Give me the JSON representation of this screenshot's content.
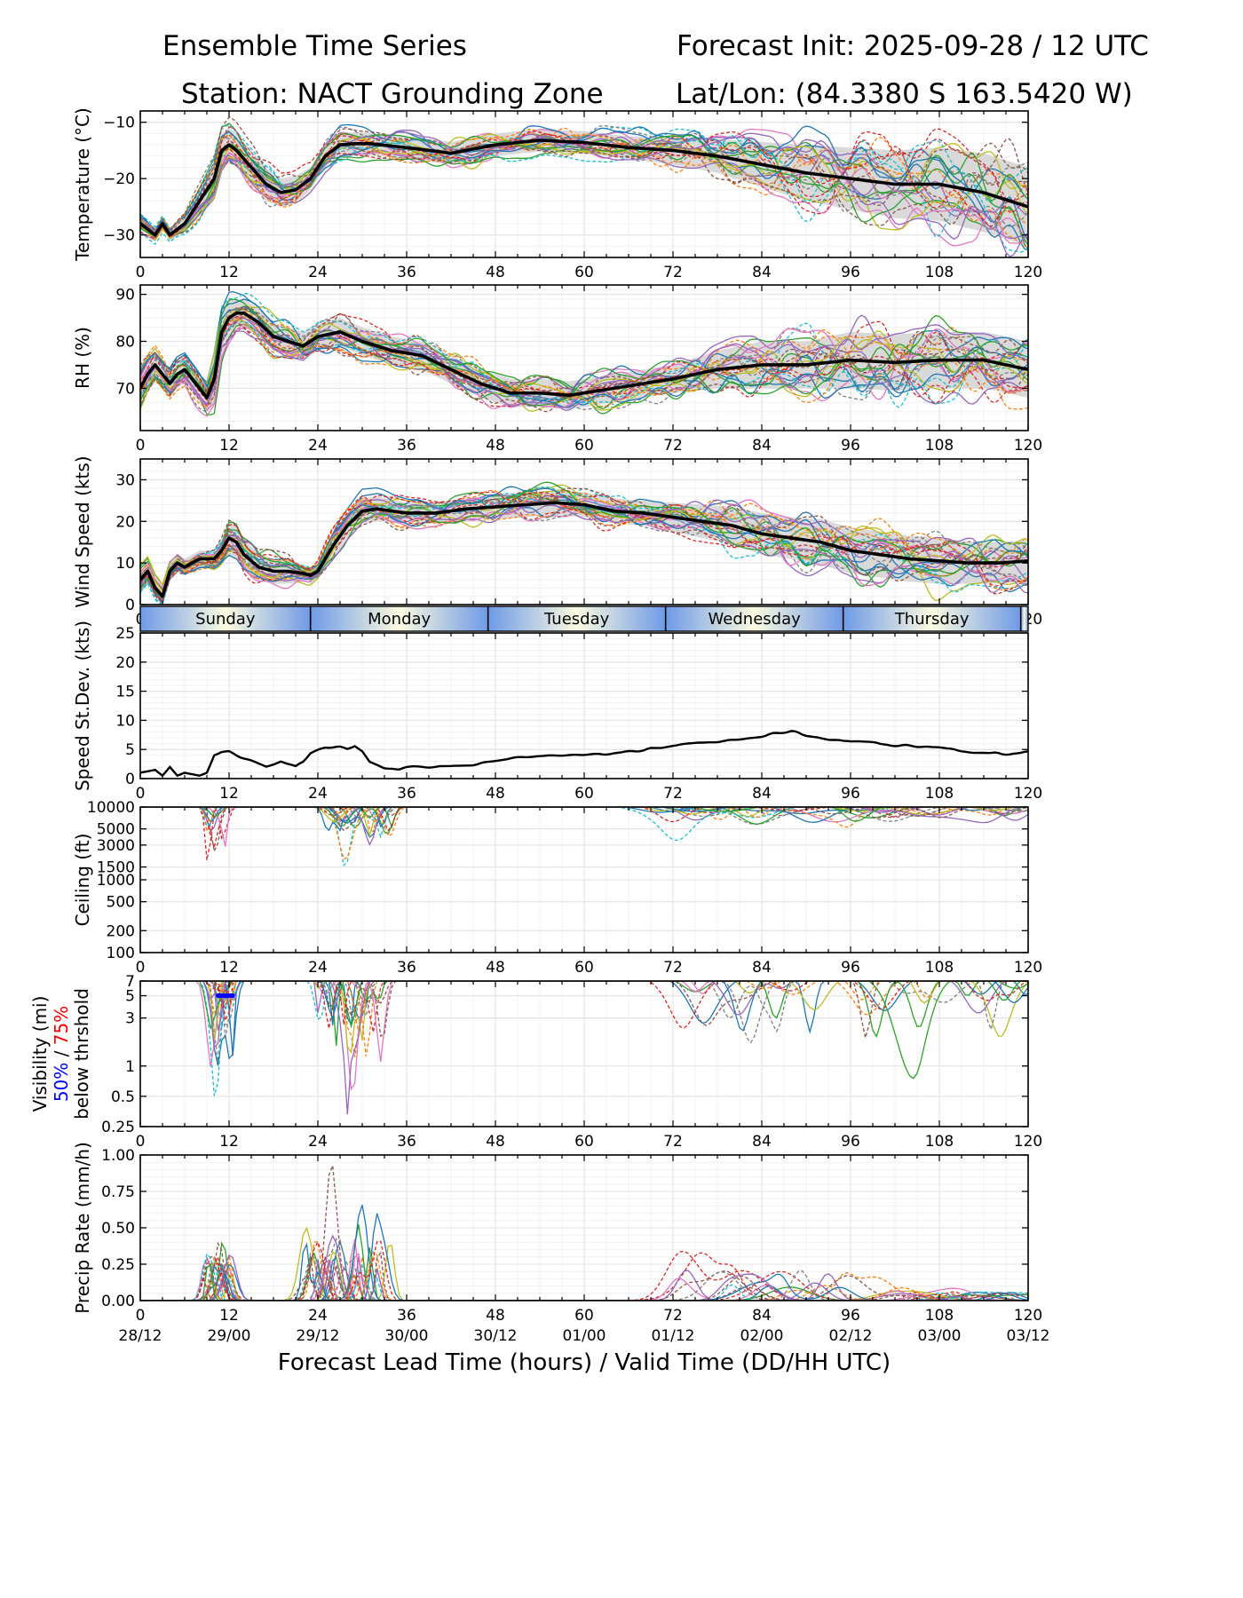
{
  "header": {
    "title_left": "Ensemble Time Series",
    "title_right": "Forecast Init: 2025-09-28 / 12 UTC",
    "station": "Station: NACT Grounding Zone",
    "latlon": "Lat/Lon: (84.3380 S 163.5420 W)"
  },
  "chart_data": [
    {
      "type": "line",
      "id": "temperature",
      "ylabel": "Temperature (°C)",
      "xlim": [
        0,
        120
      ],
      "ylim": [
        -34,
        -8
      ],
      "yticks": [
        -30,
        -20,
        -10
      ],
      "ytick_labels": [
        "−30",
        "−20",
        "−10"
      ],
      "x": [
        0,
        2,
        3,
        4,
        6,
        8,
        10,
        11,
        12,
        13,
        15,
        17,
        19,
        21,
        23,
        25,
        27,
        29,
        31,
        36,
        42,
        48,
        54,
        60,
        66,
        72,
        78,
        84,
        90,
        96,
        102,
        108,
        114,
        120
      ],
      "mean": [
        -28,
        -30,
        -28,
        -30,
        -28,
        -24,
        -20,
        -15,
        -14,
        -15,
        -18,
        -21,
        -22.5,
        -22,
        -20,
        -16,
        -14,
        -13.8,
        -13.8,
        -14.5,
        -15.5,
        -14,
        -13.2,
        -13.6,
        -14.5,
        -15,
        -16,
        -17.5,
        -19,
        -20,
        -21,
        -21,
        -22.5,
        -25
      ],
      "spread_half_width": [
        1,
        1,
        1,
        1,
        1.5,
        2,
        2.5,
        3,
        3,
        3,
        3,
        3,
        2.5,
        2.5,
        2,
        2,
        2,
        2,
        2,
        2,
        2,
        2,
        2,
        2,
        2,
        2.5,
        3,
        4,
        5,
        5.5,
        6,
        6.5,
        7,
        7
      ],
      "n_members": 26
    },
    {
      "type": "line",
      "id": "rh",
      "ylabel": "RH (%)",
      "xlim": [
        0,
        120
      ],
      "ylim": [
        61,
        92
      ],
      "yticks": [
        70,
        80,
        90
      ],
      "ytick_labels": [
        "70",
        "80",
        "90"
      ],
      "x": [
        0,
        1,
        2,
        3,
        4,
        5,
        6,
        7,
        8,
        9,
        10,
        11,
        12,
        13,
        14,
        16,
        18,
        20,
        22,
        24,
        27,
        30,
        34,
        38,
        42,
        46,
        50,
        54,
        58,
        62,
        66,
        72,
        78,
        84,
        90,
        96,
        102,
        108,
        114,
        120
      ],
      "mean": [
        70,
        73,
        75,
        73,
        71,
        73,
        74,
        72,
        70,
        68,
        72,
        82,
        85,
        86,
        86,
        84,
        81,
        80,
        79,
        81,
        82,
        80,
        78,
        77,
        74,
        71,
        69,
        69,
        68.5,
        69.5,
        70.5,
        72,
        74,
        75,
        75,
        76,
        75.5,
        76,
        76,
        74
      ],
      "spread_half_width": [
        3,
        3,
        3,
        3,
        3,
        3,
        3,
        3,
        3,
        3,
        5,
        5,
        4,
        3,
        3,
        3,
        3,
        3,
        3,
        3,
        3,
        3,
        3,
        3,
        3,
        3,
        3,
        3,
        3,
        3,
        3,
        3,
        4,
        5,
        5,
        6,
        6,
        6,
        6,
        6
      ],
      "n_members": 26
    },
    {
      "type": "line",
      "id": "wind",
      "ylabel": "Wind Speed (kts)",
      "xlim": [
        0,
        120
      ],
      "ylim": [
        0,
        35
      ],
      "yticks": [
        0,
        10,
        20,
        30
      ],
      "ytick_labels": [
        "0",
        "10",
        "20",
        "30"
      ],
      "x": [
        0,
        1,
        2,
        3,
        4,
        5,
        6,
        8,
        10,
        11,
        12,
        13,
        14,
        16,
        18,
        20,
        22,
        23,
        24,
        26,
        28,
        30,
        32,
        36,
        40,
        44,
        48,
        52,
        56,
        60,
        64,
        68,
        72,
        76,
        80,
        84,
        88,
        92,
        96,
        100,
        104,
        108,
        112,
        116,
        120
      ],
      "mean": [
        6,
        8,
        4,
        2,
        8,
        10,
        9,
        11,
        11,
        13,
        16,
        15,
        12,
        9,
        8,
        8,
        7.5,
        7,
        8,
        14,
        19,
        22.5,
        23,
        22,
        22,
        23,
        23.5,
        24,
        24.5,
        24,
        22.5,
        22,
        21,
        20,
        19,
        17,
        16,
        15,
        13,
        12,
        11,
        10.5,
        10,
        10,
        10.5
      ],
      "spread_half_width": [
        2,
        2,
        2,
        2,
        2,
        2,
        2,
        2,
        2,
        3,
        4,
        4,
        4,
        3,
        3,
        3,
        2,
        2,
        2,
        3,
        3,
        3,
        3,
        2.5,
        2.5,
        2.5,
        3,
        3,
        3,
        3,
        3,
        3,
        3.5,
        4,
        4.5,
        5,
        5,
        5.5,
        5.5,
        5.5,
        5.5,
        5.5,
        5,
        5,
        5
      ],
      "n_members": 26
    },
    {
      "type": "line",
      "id": "speed_stdev",
      "ylabel": "Speed St.Dev. (kts)",
      "xlim": [
        0,
        120
      ],
      "ylim": [
        0,
        25
      ],
      "yticks": [
        0,
        5,
        10,
        15,
        20,
        25
      ],
      "ytick_labels": [
        "0",
        "5",
        "10",
        "15",
        "20",
        "25"
      ],
      "x": [
        0,
        2,
        3,
        4,
        5,
        6,
        8,
        9,
        10,
        11,
        12,
        13,
        15,
        17,
        19,
        21,
        22,
        23,
        25,
        27,
        28,
        29,
        30,
        31,
        33,
        35,
        37,
        40,
        45,
        50,
        55,
        60,
        65,
        70,
        75,
        80,
        85,
        88,
        90,
        95,
        100,
        105,
        110,
        115,
        120
      ],
      "values": [
        1,
        1.5,
        0.5,
        2,
        0.5,
        1,
        0.5,
        1,
        4,
        4.5,
        4.5,
        4,
        3,
        2,
        3,
        2,
        3,
        4.5,
        5.5,
        5.5,
        5.2,
        5.7,
        4.8,
        3,
        2,
        1.5,
        2,
        2,
        2.5,
        3.5,
        3.8,
        4,
        4.5,
        5.2,
        6,
        6.8,
        7.5,
        8,
        7.5,
        6.5,
        6,
        5.5,
        5,
        4.2,
        4.5
      ],
      "days": [
        "Sunday",
        "Monday",
        "Tuesday",
        "Wednesday",
        "Thursday"
      ]
    },
    {
      "type": "line",
      "id": "ceiling",
      "ylabel": "Ceiling (ft)",
      "yscale": "log",
      "xlim": [
        0,
        120
      ],
      "ylim": [
        100,
        10000
      ],
      "yticks": [
        100,
        200,
        500,
        1000,
        1500,
        3000,
        5000,
        10000
      ],
      "ytick_labels": [
        "100",
        "200",
        "500",
        "1000",
        "1500",
        "3000",
        "5000",
        "10000"
      ],
      "n_members": 26
    },
    {
      "type": "line",
      "id": "visibility",
      "ylabel": "Visibility (mi)",
      "ylabel_legend_50": "50%",
      "ylabel_legend_sep": " / ",
      "ylabel_legend_75": "75%",
      "ylabel_line3": "below thrshold",
      "yscale": "log",
      "xlim": [
        0,
        120
      ],
      "ylim": [
        0.25,
        7
      ],
      "yticks": [
        0.25,
        0.5,
        1,
        3,
        5,
        7
      ],
      "ytick_labels": [
        "0.25",
        "0.5",
        "1",
        "3",
        "5",
        "7"
      ],
      "threshold_50_x": [
        10.5,
        12.5
      ],
      "threshold_50_y": 5,
      "n_members": 26
    },
    {
      "type": "line",
      "id": "precip",
      "ylabel": "Precip Rate (mm/h)",
      "xlim": [
        0,
        120
      ],
      "ylim": [
        0,
        1
      ],
      "yticks": [
        0,
        0.25,
        0.5,
        0.75,
        1
      ],
      "ytick_labels": [
        "0.00",
        "0.25",
        "0.50",
        "0.75",
        "1.00"
      ],
      "xlabel": "Forecast Lead Time (hours) / Valid Time (DD/HH UTC)",
      "valid_time_labels": [
        "28/12",
        "29/00",
        "29/12",
        "30/00",
        "30/12",
        "01/00",
        "01/12",
        "02/00",
        "02/12",
        "03/00",
        "03/12"
      ],
      "n_members": 26
    }
  ],
  "x_tick_labels": [
    "0",
    "12",
    "24",
    "36",
    "48",
    "60",
    "72",
    "84",
    "96",
    "108",
    "120"
  ],
  "colors": {
    "members": [
      "#1f77b4",
      "#ff7f0e",
      "#2ca02c",
      "#d62728",
      "#9467bd",
      "#8c564b",
      "#e377c2",
      "#7f7f7f",
      "#bcbd22",
      "#17becf"
    ],
    "mean": "#000000",
    "spread": "#d9d9d9",
    "grid": "#e6e6e6",
    "threshold_50": "#0000ff",
    "threshold_75": "#ff0000",
    "day_band_edge": "#6f9ae6",
    "day_band_center": "#fbfbe0"
  }
}
